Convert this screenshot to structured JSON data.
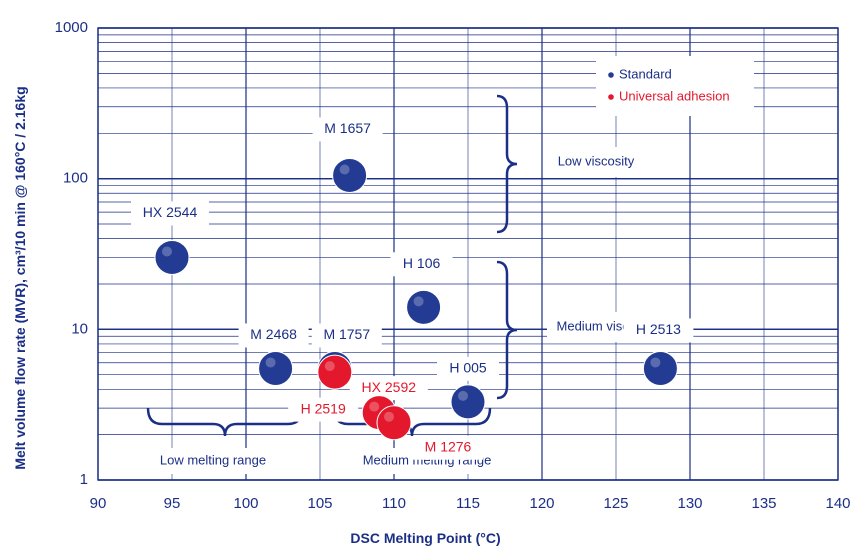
{
  "chart_data": {
    "type": "scatter",
    "title": "",
    "xlabel": "DSC Melting Point (°C)",
    "ylabel": "Melt volume flow rate (MVR), cm³/10 min @ 160°C / 2.16kg",
    "xlim": [
      90,
      140
    ],
    "ylim": [
      1,
      1000
    ],
    "y_scale": "log",
    "x_ticks": [
      "90",
      "95",
      "100",
      "105",
      "110",
      "115",
      "120",
      "125",
      "130",
      "135",
      "140"
    ],
    "y_ticks": [
      "1",
      "10",
      "100",
      "1000"
    ],
    "grid": true,
    "legend": {
      "placement": "top-right",
      "entries": [
        {
          "name": "Standard",
          "color": "#233b93"
        },
        {
          "name": "Universal adhesion",
          "color": "#e3182d"
        }
      ]
    },
    "series": [
      {
        "name": "Standard",
        "color": "#233b93",
        "points": [
          {
            "label": "HX 2544",
            "x": 95,
            "y": 30
          },
          {
            "label": "M 1657",
            "x": 107,
            "y": 105
          },
          {
            "label": "H 106",
            "x": 112,
            "y": 14
          },
          {
            "label": "M 2468",
            "x": 102,
            "y": 5.5
          },
          {
            "label": "M 1757",
            "x": 106,
            "y": 5.5
          },
          {
            "label": "H 005",
            "x": 115,
            "y": 3.3
          },
          {
            "label": "H 2513",
            "x": 128,
            "y": 5.5
          }
        ]
      },
      {
        "name": "Universal adhesion",
        "color": "#e3182d",
        "points": [
          {
            "label": "HX 2592",
            "x": 106,
            "y": 5.2
          },
          {
            "label": "H 2519",
            "x": 109,
            "y": 2.8
          },
          {
            "label": "M 1276",
            "x": 110,
            "y": 2.4
          }
        ]
      }
    ],
    "annotations": {
      "low_viscosity": "Low viscosity",
      "medium_viscosity": "Medium viscosity",
      "low_melting": "Low melting range",
      "medium_melting": "Medium melting range"
    }
  }
}
